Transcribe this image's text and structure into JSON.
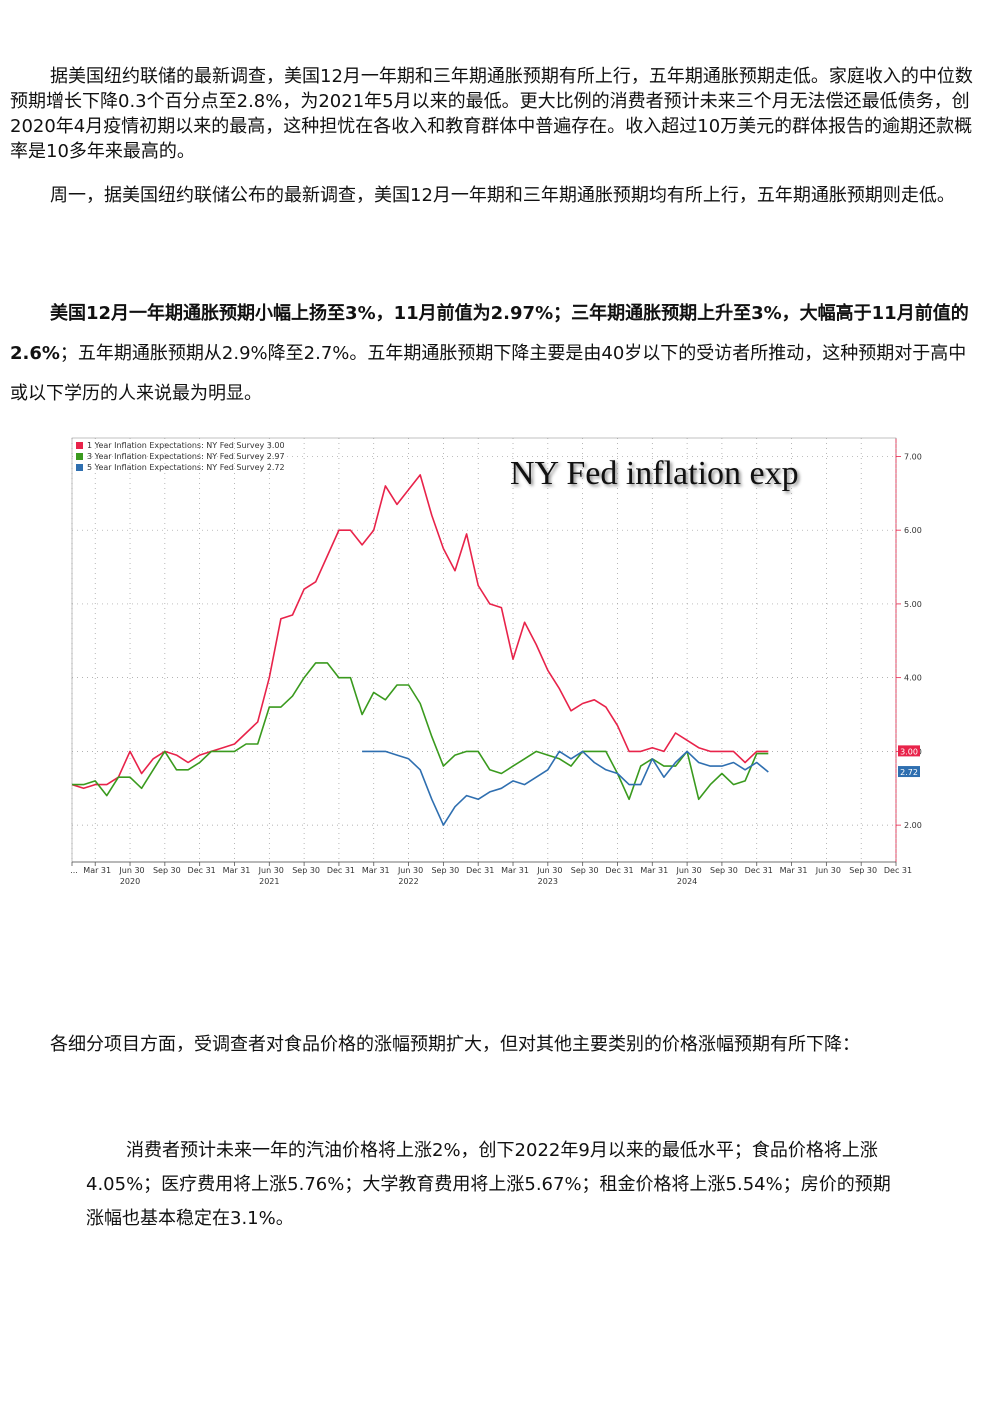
{
  "paragraphs": {
    "p1": "据美国纽约联储的最新调查，美国12月一年期和三年期通胀预期有所上行，五年期通胀预期走低。家庭收入的中位数预期增长下降0.3个百分点至2.8%，为2021年5月以来的最低。更大比例的消费者预计未来三个月无法偿还最低债务，创2020年4月疫情初期以来的最高，这种担忧在各收入和教育群体中普遍存在。收入超过10万美元的群体报告的逾期还款概率是10多年来最高的。",
    "p2": "周一，据美国纽约联储公布的最新调查，美国12月一年期和三年期通胀预期均有所上行，五年期通胀预期则走低。",
    "p3_bold": "美国12月一年期通胀预期小幅上扬至3%，11月前值为2.97%；三年期通胀预期上升至3%，大幅高于11月前值的2.6%",
    "p3_rest": "；五年期通胀预期从2.9%降至2.7%。五年期通胀预期下降主要是由40岁以下的受访者所推动，这种预期对于高中或以下学历的人来说最为明显。",
    "p4": "各细分项目方面，受调查者对食品价格的涨幅预期扩大，但对其他主要类别的价格涨幅预期有所下降：",
    "p5": "消费者预计未来一年的汽油价格将上涨2%，创下2022年9月以来的最低水平；食品价格将上涨4.05%；医疗费用将上涨5.76%；大学教育费用将上涨5.67%；租金价格将上涨5.54%；房价的预期涨幅也基本稳定在3.1%。"
  },
  "chart_data": {
    "type": "line",
    "title": "NY Fed inflation exp",
    "ylim": [
      1.5,
      7.25
    ],
    "y_ticks": [
      "2.00",
      "3.00",
      "4.00",
      "5.00",
      "6.00",
      "7.00"
    ],
    "y_tick_values": [
      2,
      3,
      4,
      5,
      6,
      7
    ],
    "x_tick_labels": [
      "...",
      "Mar 31",
      "Jun 30",
      "Sep 30",
      "Dec 31",
      "Mar 31",
      "Jun 30",
      "Sep 30",
      "Dec 31",
      "Mar 31",
      "Jun 30",
      "Sep 30",
      "Dec 31",
      "Mar 31",
      "Jun 30",
      "Sep 30",
      "Dec 31",
      "Mar 31",
      "Jun 30",
      "Sep 30",
      "Dec 31",
      "Mar 31",
      "Jun 30",
      "Sep 30",
      "Dec 31"
    ],
    "x_tick_months": [
      0,
      2,
      5,
      8,
      11,
      14,
      17,
      20,
      23,
      26,
      29,
      32,
      35,
      38,
      41,
      44,
      47,
      50,
      53,
      56,
      59,
      62,
      65,
      68,
      71
    ],
    "year_labels": [
      "2020",
      "2021",
      "2022",
      "2023",
      "2024"
    ],
    "year_label_months": [
      5,
      17,
      29,
      41,
      53
    ],
    "x_months": [
      0,
      1,
      2,
      3,
      4,
      5,
      6,
      7,
      8,
      9,
      10,
      11,
      12,
      13,
      14,
      15,
      16,
      17,
      18,
      19,
      20,
      21,
      22,
      23,
      24,
      25,
      26,
      27,
      28,
      29,
      30,
      31,
      32,
      33,
      34,
      35,
      36,
      37,
      38,
      39,
      40,
      41,
      42,
      43,
      44,
      45,
      46,
      47,
      48,
      49,
      50,
      51,
      52,
      53,
      54,
      55,
      56,
      57,
      58,
      59,
      60
    ],
    "grid": true,
    "legend_position": "top-left",
    "series": [
      {
        "name": "1 Year Inflation Expectations: NY Fed Survey 3.00",
        "color": "#e8234a",
        "last_label": "3.00",
        "values": [
          2.55,
          2.5,
          2.55,
          2.55,
          2.65,
          3.0,
          2.7,
          2.9,
          3.0,
          2.95,
          2.85,
          2.95,
          3.0,
          3.05,
          3.1,
          3.25,
          3.4,
          4.0,
          4.8,
          4.85,
          5.2,
          5.3,
          5.65,
          6.0,
          6.0,
          5.8,
          6.0,
          6.6,
          6.35,
          6.55,
          6.75,
          6.2,
          5.75,
          5.45,
          5.95,
          5.25,
          5.0,
          4.95,
          4.25,
          4.75,
          4.45,
          4.1,
          3.85,
          3.55,
          3.65,
          3.7,
          3.6,
          3.35,
          3.0,
          3.0,
          3.05,
          3.0,
          3.25,
          3.15,
          3.05,
          3.0,
          3.0,
          3.0,
          2.85,
          3.0,
          3.0
        ]
      },
      {
        "name": "3 Year Inflation Expectations: NY Fed Survey 2.97",
        "color": "#3a9a1e",
        "last_label": "",
        "values": [
          2.55,
          2.55,
          2.6,
          2.4,
          2.65,
          2.65,
          2.5,
          2.75,
          3.0,
          2.75,
          2.75,
          2.85,
          3.0,
          3.0,
          3.0,
          3.1,
          3.1,
          3.6,
          3.6,
          3.75,
          4.0,
          4.2,
          4.2,
          4.0,
          4.0,
          3.5,
          3.8,
          3.7,
          3.9,
          3.9,
          3.65,
          3.2,
          2.8,
          2.95,
          3.0,
          3.0,
          2.75,
          2.7,
          2.8,
          2.9,
          3.0,
          2.95,
          2.9,
          2.8,
          3.0,
          3.0,
          3.0,
          2.7,
          2.35,
          2.8,
          2.9,
          2.8,
          2.8,
          3.0,
          2.35,
          2.55,
          2.7,
          2.55,
          2.6,
          2.97,
          2.97
        ]
      },
      {
        "name": "5 Year Inflation Expectations: NY Fed Survey 2.72",
        "color": "#2f6fb0",
        "last_label": "2.72",
        "start_month": 25,
        "values": [
          3.0,
          3.0,
          3.0,
          2.95,
          2.9,
          2.75,
          2.35,
          2.0,
          2.25,
          2.4,
          2.35,
          2.45,
          2.5,
          2.6,
          2.55,
          2.65,
          2.75,
          3.0,
          2.9,
          3.0,
          2.85,
          2.75,
          2.7,
          2.55,
          2.55,
          2.9,
          2.65,
          2.85,
          3.0,
          2.85,
          2.8,
          2.8,
          2.85,
          2.75,
          2.85,
          2.72
        ]
      }
    ]
  }
}
